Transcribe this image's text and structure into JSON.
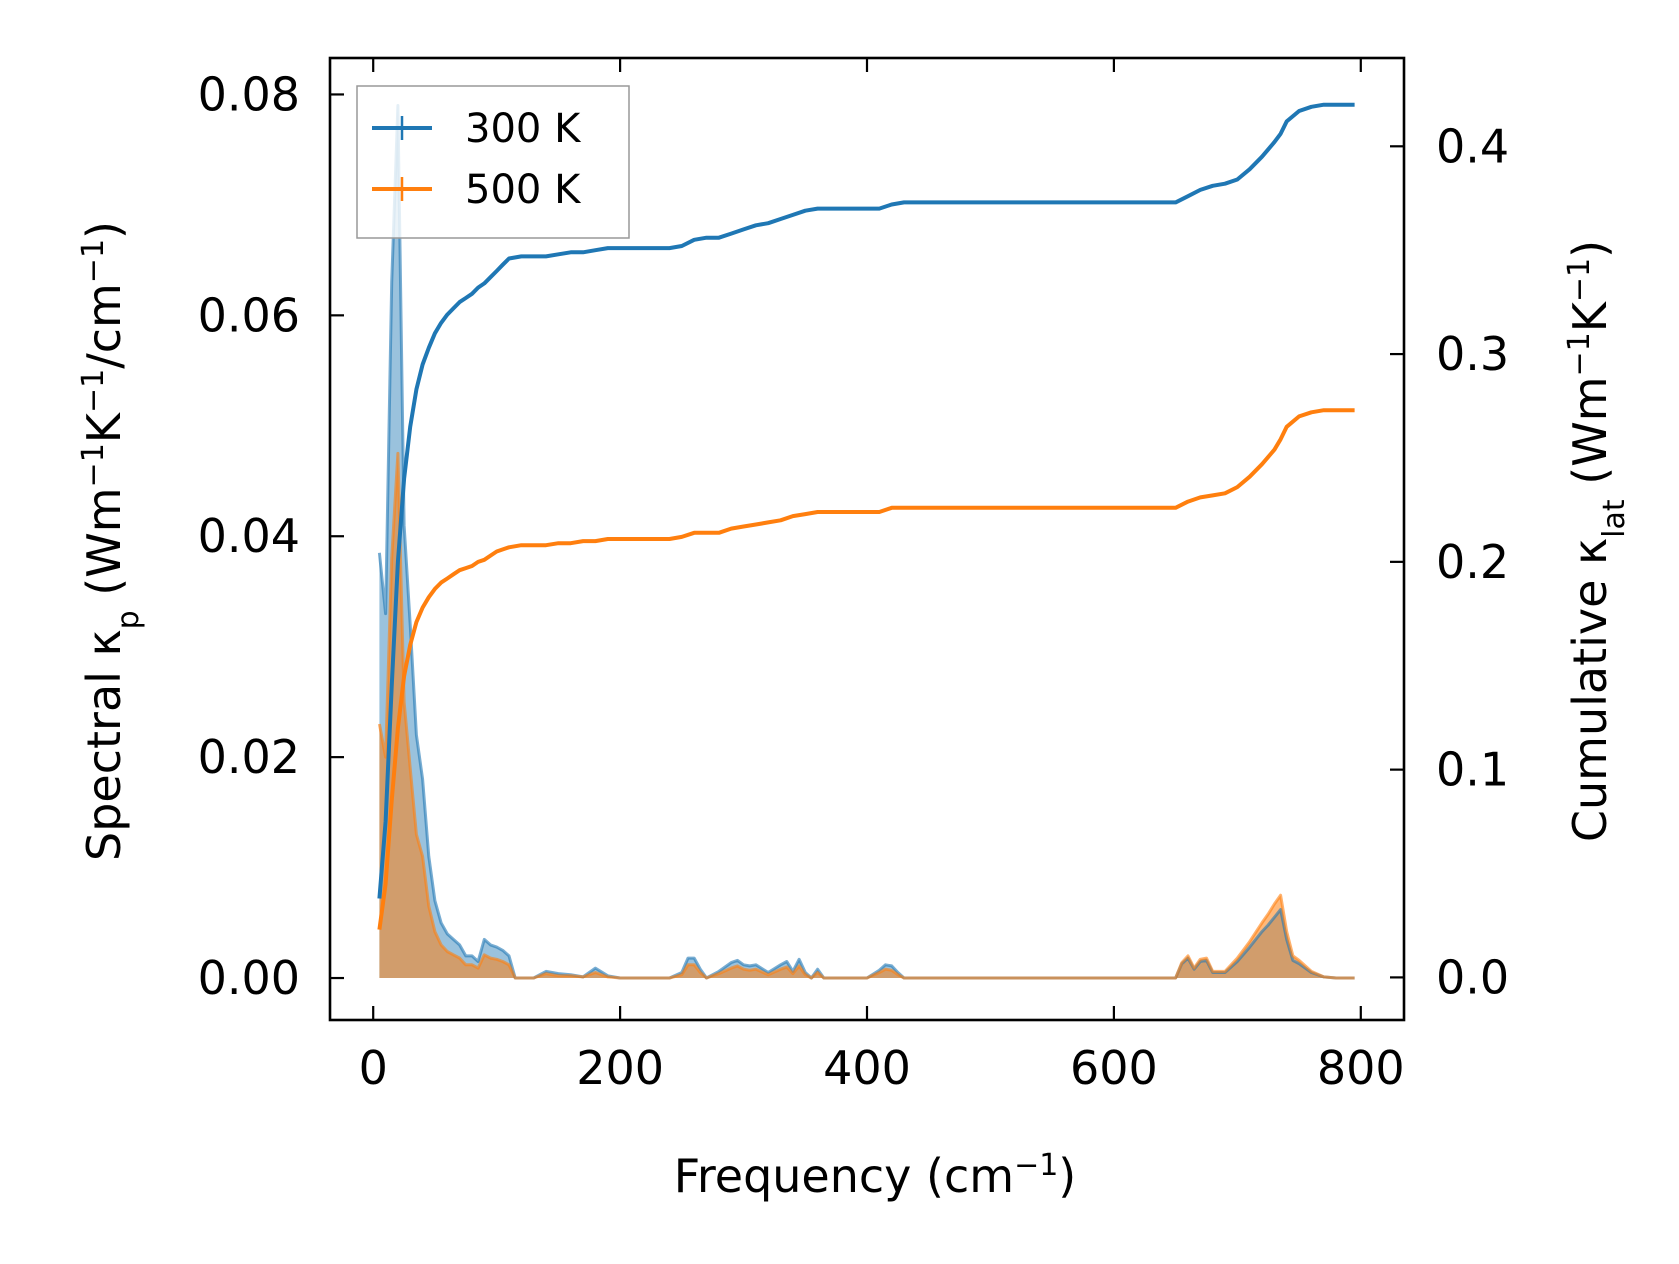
{
  "colors": {
    "series_300": "#1f77b4",
    "series_500": "#ff7f0e",
    "fill_300": "#1f77b4",
    "fill_500": "#ff7f0e",
    "axes": "#000000",
    "legend_frame": "#999999"
  },
  "chart_data": {
    "type": "line",
    "title": "",
    "xlabel": "Frequency (cm",
    "xlabel_sup": "−1",
    "xlabel_tail": ")",
    "ylabel_left": {
      "pre": "Spectral κ",
      "sub": "p",
      "mid1": " (Wm",
      "sup1": "−1",
      "mid2": "K",
      "sup2": "−1",
      "mid3": "/cm",
      "sup3": "−1",
      "post": ")"
    },
    "ylabel_right": {
      "pre": "Cumulative κ",
      "sub": "lat",
      "mid1": " (Wm",
      "sup1": "−1",
      "mid2": "K",
      "sup2": "−1",
      "post": ")"
    },
    "xlim": [
      -35,
      835
    ],
    "ylim_left": [
      -0.0038,
      0.0833
    ],
    "ylim_right": [
      -0.0205,
      0.4425
    ],
    "xticks": [
      0,
      200,
      400,
      600,
      800
    ],
    "xtick_labels": [
      "0",
      "200",
      "400",
      "600",
      "800"
    ],
    "yticks_left": [
      0,
      0.02,
      0.04,
      0.06,
      0.08
    ],
    "ytick_labels_left": [
      "0.00",
      "0.02",
      "0.04",
      "0.06",
      "0.08"
    ],
    "yticks_right": [
      0,
      0.1,
      0.2,
      0.3,
      0.4
    ],
    "ytick_labels_right": [
      "0.0",
      "0.1",
      "0.2",
      "0.3",
      "0.4"
    ],
    "legend_position": "top-left",
    "legend": [
      "300 K",
      "500 K"
    ],
    "spectral_series": [
      {
        "name": "300 K",
        "x": [
          5,
          10,
          15,
          20,
          25,
          30,
          35,
          40,
          45,
          50,
          55,
          60,
          65,
          70,
          75,
          80,
          85,
          90,
          95,
          100,
          105,
          110,
          115,
          120,
          130,
          140,
          150,
          160,
          170,
          180,
          190,
          200,
          220,
          240,
          250,
          255,
          260,
          265,
          270,
          280,
          290,
          295,
          300,
          305,
          310,
          320,
          330,
          335,
          340,
          345,
          350,
          355,
          360,
          365,
          370,
          400,
          410,
          415,
          420,
          425,
          430,
          500,
          600,
          650,
          655,
          660,
          665,
          670,
          675,
          680,
          690,
          700,
          710,
          720,
          725,
          730,
          735,
          740,
          745,
          750,
          760,
          770,
          780,
          795
        ],
        "y": [
          0.0385,
          0.033,
          0.063,
          0.079,
          0.041,
          0.032,
          0.022,
          0.018,
          0.011,
          0.007,
          0.005,
          0.004,
          0.0035,
          0.003,
          0.002,
          0.002,
          0.0015,
          0.0035,
          0.003,
          0.0028,
          0.0025,
          0.002,
          0.0,
          0.0,
          0.0,
          0.0006,
          0.0004,
          0.0003,
          0.0001,
          0.0009,
          0.0002,
          0.0,
          0.0,
          0.0,
          0.0005,
          0.0018,
          0.0018,
          0.0008,
          0.0,
          0.0006,
          0.0014,
          0.0016,
          0.0012,
          0.0011,
          0.0012,
          0.0005,
          0.0012,
          0.0015,
          0.0006,
          0.0017,
          0.0005,
          0.0,
          0.0008,
          0.0,
          0.0,
          0.0,
          0.0007,
          0.0012,
          0.0011,
          0.0005,
          0.0,
          0.0,
          0.0,
          0.0,
          0.0013,
          0.0018,
          0.0008,
          0.0015,
          0.0016,
          0.0005,
          0.0005,
          0.0015,
          0.0028,
          0.0042,
          0.0048,
          0.0055,
          0.0062,
          0.0035,
          0.0016,
          0.0013,
          0.0005,
          0.0001,
          0.0,
          0.0
        ]
      },
      {
        "name": "500 K",
        "x": [
          5,
          10,
          15,
          20,
          25,
          30,
          35,
          40,
          45,
          50,
          55,
          60,
          65,
          70,
          75,
          80,
          85,
          90,
          95,
          100,
          105,
          110,
          115,
          120,
          130,
          140,
          150,
          160,
          170,
          180,
          190,
          200,
          220,
          240,
          250,
          255,
          260,
          265,
          270,
          280,
          290,
          295,
          300,
          305,
          310,
          320,
          330,
          335,
          340,
          345,
          350,
          355,
          360,
          365,
          370,
          400,
          410,
          415,
          420,
          425,
          430,
          500,
          600,
          650,
          655,
          660,
          665,
          670,
          675,
          680,
          690,
          700,
          710,
          720,
          725,
          730,
          735,
          740,
          745,
          750,
          760,
          770,
          780,
          795
        ],
        "y": [
          0.023,
          0.02,
          0.038,
          0.0475,
          0.025,
          0.019,
          0.013,
          0.011,
          0.0065,
          0.0042,
          0.003,
          0.0024,
          0.0021,
          0.0018,
          0.0012,
          0.0012,
          0.0009,
          0.0021,
          0.0018,
          0.0017,
          0.0015,
          0.0012,
          0.0,
          0.0,
          0.0,
          0.0004,
          0.0002,
          0.0002,
          0.0001,
          0.0005,
          0.0001,
          0.0,
          0.0,
          0.0,
          0.0003,
          0.0012,
          0.0012,
          0.0005,
          0.0,
          0.0004,
          0.0009,
          0.0011,
          0.0008,
          0.0007,
          0.0008,
          0.0003,
          0.0008,
          0.001,
          0.0004,
          0.0011,
          0.0003,
          0.0,
          0.0005,
          0.0,
          0.0,
          0.0,
          0.0005,
          0.0008,
          0.0007,
          0.0003,
          0.0,
          0.0,
          0.0,
          0.0,
          0.0014,
          0.002,
          0.0009,
          0.0017,
          0.0018,
          0.0006,
          0.0006,
          0.0018,
          0.0033,
          0.005,
          0.0058,
          0.0067,
          0.0075,
          0.0042,
          0.002,
          0.0016,
          0.0006,
          0.0001,
          0.0,
          0.0
        ]
      }
    ],
    "cumulative_series": [
      {
        "name": "300 K",
        "x": [
          5,
          10,
          15,
          20,
          25,
          30,
          35,
          40,
          45,
          50,
          55,
          60,
          65,
          70,
          75,
          80,
          85,
          90,
          95,
          100,
          105,
          110,
          120,
          130,
          140,
          150,
          160,
          170,
          180,
          190,
          200,
          220,
          240,
          250,
          260,
          270,
          280,
          290,
          300,
          310,
          320,
          330,
          340,
          350,
          360,
          380,
          400,
          410,
          420,
          430,
          500,
          600,
          650,
          660,
          670,
          680,
          690,
          700,
          710,
          720,
          730,
          735,
          740,
          750,
          760,
          770,
          780,
          795
        ],
        "y": [
          0.038,
          0.075,
          0.14,
          0.2,
          0.24,
          0.265,
          0.283,
          0.295,
          0.303,
          0.31,
          0.315,
          0.319,
          0.322,
          0.325,
          0.327,
          0.329,
          0.332,
          0.334,
          0.337,
          0.34,
          0.343,
          0.346,
          0.347,
          0.347,
          0.347,
          0.348,
          0.349,
          0.349,
          0.35,
          0.351,
          0.351,
          0.351,
          0.351,
          0.352,
          0.355,
          0.356,
          0.356,
          0.358,
          0.36,
          0.362,
          0.363,
          0.365,
          0.367,
          0.369,
          0.37,
          0.37,
          0.37,
          0.37,
          0.372,
          0.373,
          0.373,
          0.373,
          0.373,
          0.376,
          0.379,
          0.381,
          0.382,
          0.384,
          0.389,
          0.395,
          0.402,
          0.406,
          0.412,
          0.417,
          0.419,
          0.42,
          0.42,
          0.42
        ]
      },
      {
        "name": "500 K",
        "x": [
          5,
          10,
          15,
          20,
          25,
          30,
          35,
          40,
          45,
          50,
          55,
          60,
          65,
          70,
          75,
          80,
          85,
          90,
          95,
          100,
          105,
          110,
          120,
          130,
          140,
          150,
          160,
          170,
          180,
          190,
          200,
          220,
          240,
          250,
          260,
          270,
          280,
          290,
          300,
          310,
          320,
          330,
          340,
          350,
          360,
          380,
          400,
          410,
          420,
          430,
          500,
          600,
          650,
          660,
          670,
          680,
          690,
          700,
          710,
          720,
          730,
          735,
          740,
          750,
          760,
          770,
          780,
          795
        ],
        "y": [
          0.023,
          0.045,
          0.085,
          0.12,
          0.145,
          0.16,
          0.171,
          0.178,
          0.183,
          0.187,
          0.19,
          0.192,
          0.194,
          0.196,
          0.197,
          0.198,
          0.2,
          0.201,
          0.203,
          0.205,
          0.206,
          0.207,
          0.208,
          0.208,
          0.208,
          0.209,
          0.209,
          0.21,
          0.21,
          0.211,
          0.211,
          0.211,
          0.211,
          0.212,
          0.214,
          0.214,
          0.214,
          0.216,
          0.217,
          0.218,
          0.219,
          0.22,
          0.222,
          0.223,
          0.224,
          0.224,
          0.224,
          0.224,
          0.226,
          0.226,
          0.226,
          0.226,
          0.226,
          0.229,
          0.231,
          0.232,
          0.233,
          0.236,
          0.241,
          0.247,
          0.254,
          0.259,
          0.265,
          0.27,
          0.272,
          0.273,
          0.273,
          0.273
        ]
      }
    ]
  }
}
